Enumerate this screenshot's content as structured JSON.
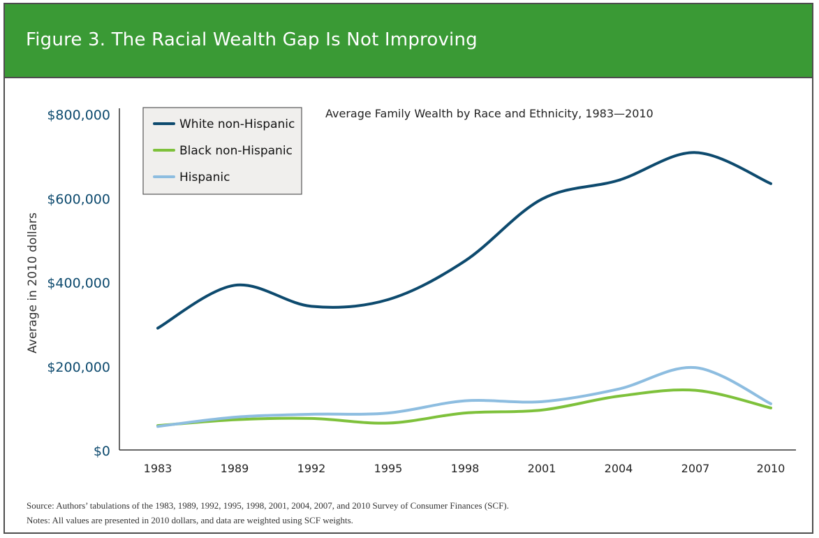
{
  "header": {
    "title": "Figure 3. The Racial Wealth Gap Is Not Improving"
  },
  "colors": {
    "header_bg": "#3a9a35",
    "white": "#0d4a6e",
    "black": "#7ec13b",
    "hispanic": "#8dbde0",
    "tick_text": "#0d4a6e"
  },
  "chart_data": {
    "type": "line",
    "title": "Average Family Wealth by Race and Ethnicity, 1983—2010",
    "xlabel": "",
    "ylabel": "Average in 2010 dollars",
    "x": [
      1983,
      1989,
      1992,
      1995,
      1998,
      2001,
      2004,
      2007,
      2010
    ],
    "x_tick_labels": [
      "1983",
      "1989",
      "1992",
      "1995",
      "1998",
      "2001",
      "2004",
      "2007",
      "2010"
    ],
    "ylim": [
      0,
      800000
    ],
    "y_ticks": [
      0,
      200000,
      400000,
      600000,
      800000
    ],
    "y_tick_labels": [
      "$0",
      "$200,000",
      "$400,000",
      "$600,000",
      "$800,000"
    ],
    "legend_position": "top-left",
    "series": [
      {
        "name": "White non-Hispanic",
        "color": "#0d4a6e",
        "values": [
          290000,
          392000,
          342000,
          358000,
          450000,
          597000,
          642000,
          708000,
          634000
        ]
      },
      {
        "name": "Black non-Hispanic",
        "color": "#7ec13b",
        "values": [
          58000,
          72000,
          75000,
          64000,
          88000,
          95000,
          128000,
          142000,
          100000
        ]
      },
      {
        "name": "Hispanic",
        "color": "#8dbde0",
        "values": [
          56000,
          78000,
          85000,
          88000,
          117000,
          115000,
          145000,
          196000,
          110000
        ]
      }
    ]
  },
  "footnotes": {
    "source": "Source: Authors’ tabulations of the 1983, 1989, 1992, 1995, 1998, 2001, 2004, 2007, and 2010 Survey of Consumer Finances (SCF).",
    "notes": "Notes: All values are presented in 2010 dollars, and data are weighted using SCF weights."
  }
}
